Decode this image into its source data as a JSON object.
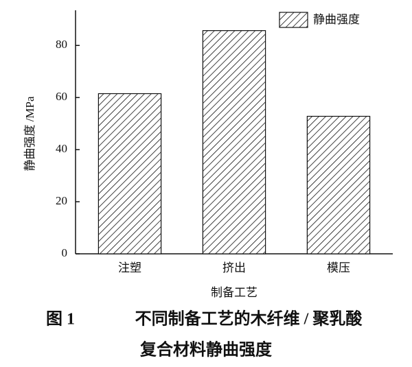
{
  "chart_data": {
    "type": "bar",
    "categories": [
      "注塑",
      "挤出",
      "模压"
    ],
    "values": [
      61.5,
      85.7,
      52.8
    ],
    "series_name": "静曲强度",
    "ylabel": "静曲强度 /MPa",
    "xlabel": "制备工艺",
    "ylim": [
      0,
      92
    ],
    "yticks": [
      0,
      20,
      40,
      60,
      80
    ],
    "legend": "upper right",
    "color": "#111111"
  },
  "caption": {
    "label": "图 1",
    "lines": [
      "不同制备工艺的木纤维 / 聚乳酸",
      "复合材料静曲强度"
    ]
  }
}
